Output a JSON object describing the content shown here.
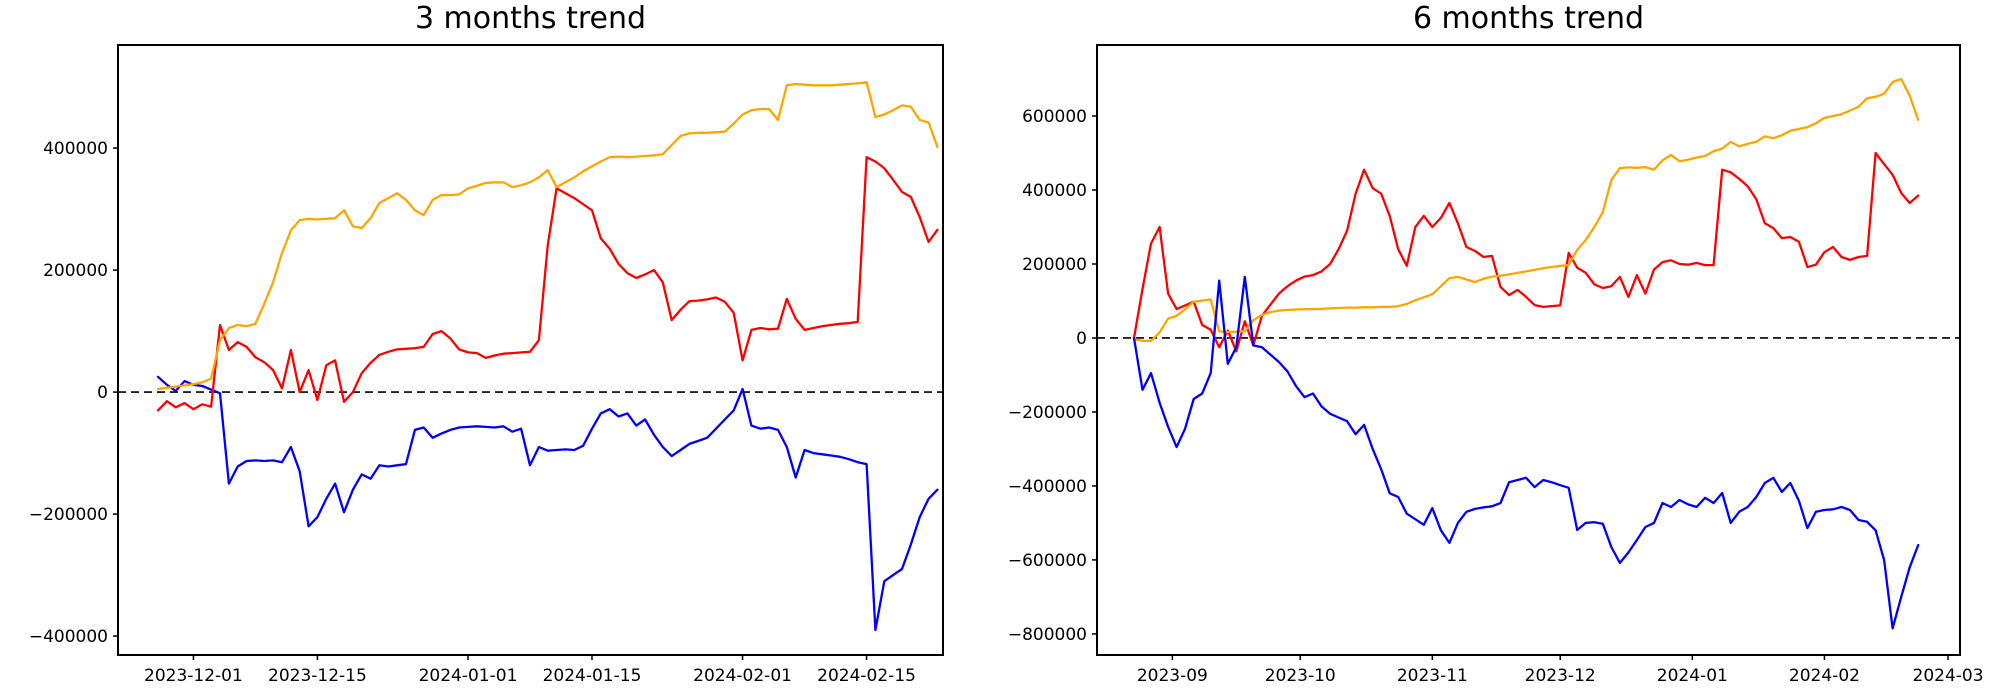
{
  "page": {
    "background": "#ffffff"
  },
  "chart_data": [
    {
      "type": "line",
      "title": "3 months trend",
      "xlabel": "",
      "ylabel": "",
      "grid": false,
      "legend": null,
      "zero_line": {
        "style": "dashed",
        "color": "#000000",
        "y": 0
      },
      "x_range": [
        "2023-11-27",
        "2024-02-23"
      ],
      "sample_interval_days": 1,
      "ylim": [
        -431000,
        569000
      ],
      "y_ticks": [
        400000,
        200000,
        0,
        -200000,
        -400000
      ],
      "x_ticks": [
        {
          "label": "2023-12-01",
          "day": 4
        },
        {
          "label": "2023-12-15",
          "day": 18
        },
        {
          "label": "2024-01-01",
          "day": 35
        },
        {
          "label": "2024-01-15",
          "day": 49
        },
        {
          "label": "2024-02-01",
          "day": 66
        },
        {
          "label": "2024-02-15",
          "day": 80
        }
      ],
      "series": [
        {
          "name": "blue",
          "color": "#0000ff",
          "values": [
            25000,
            12000,
            2000,
            18000,
            12000,
            10000,
            4000,
            -2000,
            -150000,
            -122000,
            -113000,
            -112000,
            -113000,
            -112000,
            -115000,
            -90000,
            -130000,
            -220000,
            -205000,
            -175000,
            -150000,
            -197000,
            -160000,
            -135000,
            -142000,
            -120000,
            -122000,
            -120000,
            -118000,
            -62000,
            -58000,
            -75000,
            -68000,
            -62000,
            -58000,
            -57000,
            -56000,
            -57000,
            -58000,
            -56000,
            -65000,
            -60000,
            -120000,
            -90000,
            -96000,
            -95000,
            -94000,
            -95000,
            -88000,
            -60000,
            -35000,
            -28000,
            -40000,
            -35000,
            -55000,
            -45000,
            -70000,
            -90000,
            -105000,
            -95000,
            -85000,
            -80000,
            -75000,
            -60000,
            -45000,
            -30000,
            5000,
            -55000,
            -60000,
            -58000,
            -62000,
            -90000,
            -140000,
            -95000,
            -100000,
            -102000,
            -104000,
            -106000,
            -110000,
            -115000,
            -118000,
            -390000,
            -310000,
            -300000,
            -290000,
            -250000,
            -205000,
            -175000,
            -160000
          ]
        },
        {
          "name": "red",
          "color": "#ff0000",
          "values": [
            -30000,
            -15000,
            -25000,
            -18000,
            -28000,
            -20000,
            -24000,
            110000,
            69000,
            82000,
            74000,
            57000,
            49000,
            36000,
            6000,
            69000,
            0,
            36000,
            -13000,
            44000,
            52000,
            -16000,
            0,
            31000,
            48000,
            61000,
            66000,
            70000,
            71000,
            72000,
            74000,
            95000,
            100000,
            88000,
            70000,
            65000,
            64000,
            56000,
            60000,
            63000,
            64000,
            65000,
            66000,
            85000,
            240000,
            334000,
            326000,
            318000,
            308000,
            298000,
            252000,
            235000,
            210000,
            195000,
            187000,
            193000,
            200000,
            180000,
            118000,
            135000,
            149000,
            150000,
            152000,
            155000,
            148000,
            130000,
            52000,
            102000,
            105000,
            103000,
            104000,
            153000,
            120000,
            102000,
            105000,
            108000,
            110000,
            112000,
            113000,
            115000,
            385000,
            378000,
            367000,
            348000,
            328000,
            320000,
            287000,
            246000,
            266000
          ]
        },
        {
          "name": "orange",
          "color": "#ffa500",
          "values": [
            5000,
            7000,
            9000,
            11000,
            13000,
            16000,
            22000,
            85000,
            105000,
            110000,
            108000,
            112000,
            145000,
            180000,
            228000,
            265000,
            282000,
            284000,
            283000,
            284000,
            285000,
            298000,
            272000,
            269000,
            285000,
            310000,
            318000,
            326000,
            315000,
            298000,
            290000,
            315000,
            323000,
            323000,
            324000,
            334000,
            338000,
            343000,
            344000,
            344000,
            336000,
            339000,
            344000,
            352000,
            364000,
            336000,
            344000,
            352000,
            362000,
            370000,
            378000,
            385000,
            386000,
            385000,
            386000,
            387000,
            388000,
            390000,
            405000,
            420000,
            424000,
            425000,
            425000,
            426000,
            427000,
            440000,
            455000,
            462000,
            464000,
            464000,
            446000,
            503000,
            505000,
            504000,
            503000,
            503000,
            503000,
            504000,
            505000,
            506000,
            508000,
            451000,
            455000,
            462000,
            470000,
            468000,
            446000,
            442000,
            402000
          ]
        }
      ]
    },
    {
      "type": "line",
      "title": "6 months trend",
      "xlabel": "",
      "ylabel": "",
      "grid": false,
      "legend": null,
      "zero_line": {
        "style": "dashed",
        "color": "#000000",
        "y": 0
      },
      "x_range": [
        "2023-08-23",
        "2024-02-23"
      ],
      "sample_interval_days": 2,
      "ylim": [
        -857000,
        792000
      ],
      "y_ticks": [
        600000,
        400000,
        200000,
        0,
        -200000,
        -400000,
        -600000,
        -800000
      ],
      "x_ticks": [
        {
          "label": "2023-09",
          "day": 9
        },
        {
          "label": "2023-10",
          "day": 39
        },
        {
          "label": "2023-11",
          "day": 70
        },
        {
          "label": "2023-12",
          "day": 100
        },
        {
          "label": "2024-01",
          "day": 131
        },
        {
          "label": "2024-02",
          "day": 162
        },
        {
          "label": "2024-03",
          "day": 191
        }
      ],
      "series": [
        {
          "name": "red",
          "color": "#ff0000",
          "values": [
            0,
            132000,
            255000,
            300000,
            120000,
            78000,
            88000,
            98000,
            35000,
            22000,
            -25000,
            20000,
            -36000,
            45000,
            -20000,
            60000,
            90000,
            120000,
            140000,
            155000,
            166000,
            170000,
            180000,
            200000,
            240000,
            290000,
            390000,
            455000,
            405000,
            390000,
            330000,
            240000,
            195000,
            300000,
            330000,
            300000,
            325000,
            365000,
            310000,
            246000,
            235000,
            219000,
            222000,
            138000,
            116000,
            130000,
            111000,
            89000,
            84000,
            86000,
            88000,
            230000,
            190000,
            176000,
            145000,
            135000,
            140000,
            165000,
            111000,
            170000,
            120000,
            185000,
            205000,
            210000,
            200000,
            198000,
            203000,
            197000,
            197000,
            455000,
            448000,
            430000,
            410000,
            375000,
            310000,
            297000,
            270000,
            273000,
            260000,
            192000,
            198000,
            232000,
            246000,
            219000,
            211000,
            219000,
            222000,
            500000,
            470000,
            441000,
            392000,
            365000,
            385000
          ]
        },
        {
          "name": "orange",
          "color": "#ffa500",
          "values": [
            -3000,
            -8000,
            -8000,
            15000,
            52000,
            60000,
            78000,
            98000,
            101000,
            104000,
            18000,
            16000,
            17000,
            18000,
            48000,
            62000,
            70000,
            74000,
            76000,
            77000,
            78000,
            78000,
            79000,
            80000,
            81000,
            82000,
            82000,
            83000,
            83000,
            84000,
            84000,
            86000,
            92000,
            102000,
            110000,
            118000,
            140000,
            162000,
            165000,
            158000,
            151000,
            160000,
            166000,
            168000,
            172000,
            176000,
            180000,
            184000,
            189000,
            192000,
            195000,
            197000,
            238000,
            265000,
            300000,
            340000,
            427000,
            459000,
            461000,
            460000,
            462000,
            455000,
            480000,
            495000,
            478000,
            482000,
            488000,
            492000,
            505000,
            512000,
            530000,
            518000,
            525000,
            530000,
            545000,
            540000,
            548000,
            560000,
            565000,
            570000,
            580000,
            595000,
            600000,
            605000,
            615000,
            625000,
            648000,
            652000,
            660000,
            692000,
            700000,
            655000,
            590000
          ]
        },
        {
          "name": "blue",
          "color": "#0000ff",
          "values": [
            0,
            -140000,
            -95000,
            -175000,
            -240000,
            -295000,
            -245000,
            -165000,
            -150000,
            -95000,
            155000,
            -70000,
            -25000,
            165000,
            -20000,
            -25000,
            -45000,
            -65000,
            -90000,
            -130000,
            -160000,
            -150000,
            -185000,
            -205000,
            -215000,
            -225000,
            -260000,
            -235000,
            -300000,
            -355000,
            -420000,
            -430000,
            -475000,
            -490000,
            -505000,
            -460000,
            -520000,
            -554000,
            -500000,
            -470000,
            -462000,
            -458000,
            -455000,
            -446000,
            -390000,
            -384000,
            -378000,
            -403000,
            -384000,
            -390000,
            -398000,
            -405000,
            -519000,
            -500000,
            -498000,
            -502000,
            -565000,
            -608000,
            -580000,
            -546000,
            -511000,
            -500000,
            -446000,
            -457000,
            -438000,
            -450000,
            -457000,
            -432000,
            -446000,
            -419000,
            -500000,
            -470000,
            -457000,
            -430000,
            -392000,
            -378000,
            -416000,
            -392000,
            -440000,
            -514000,
            -470000,
            -465000,
            -463000,
            -457000,
            -465000,
            -492000,
            -497000,
            -520000,
            -600000,
            -785000,
            -700000,
            -620000,
            -560000
          ]
        }
      ]
    }
  ]
}
